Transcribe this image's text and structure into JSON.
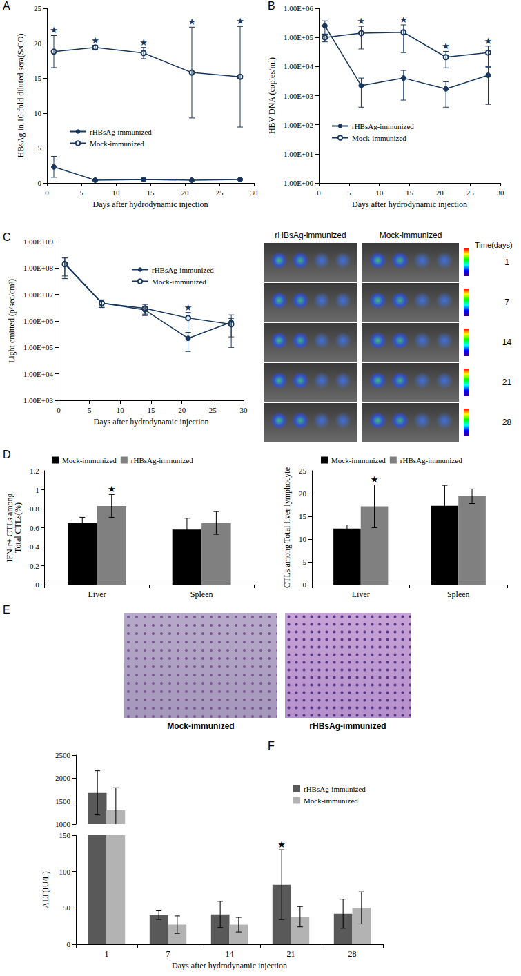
{
  "chart_data": [
    {
      "panel": "A",
      "type": "line",
      "x": [
        1,
        7,
        14,
        21,
        28
      ],
      "xlim": [
        0,
        30
      ],
      "xticks": [
        0,
        5,
        10,
        15,
        20,
        25,
        30
      ],
      "ylim": [
        0,
        25
      ],
      "yticks": [
        0,
        5,
        10,
        15,
        20,
        25
      ],
      "x_label": "Days after hydrodynamic injection",
      "y_label": "HBsAg in 10-fold diluted sera(S/CO)",
      "grid": false,
      "legend": "left",
      "annotation": "★",
      "series": [
        {
          "name": "rHBsAg-immunized",
          "color": "#17375e",
          "marker": "circle",
          "values": [
            2.3,
            0.4,
            0.5,
            0.4,
            0.5
          ],
          "errors": [
            1.5,
            0.1,
            0.1,
            0.1,
            0.1
          ]
        },
        {
          "name": "Mock-immunized",
          "color": "#17375e",
          "marker": "open_circle",
          "values": [
            18.8,
            19.4,
            18.6,
            15.8,
            15.2
          ],
          "errors": [
            2.3,
            0.3,
            0.8,
            6.5,
            7.2
          ],
          "marked": [
            1,
            7,
            14,
            21,
            28
          ]
        }
      ]
    },
    {
      "panel": "B",
      "type": "line",
      "log": "y",
      "x": [
        1,
        7,
        14,
        21,
        28
      ],
      "xlim": [
        0,
        30
      ],
      "xticks": [
        0,
        5,
        10,
        15,
        20,
        25,
        30
      ],
      "ylim": [
        1,
        1000000
      ],
      "yticks": [
        {
          "value": 1,
          "label": "1.00E+00"
        },
        {
          "value": 10,
          "label": "1.00E+01"
        },
        {
          "value": 100,
          "label": "1.00E+02"
        },
        {
          "value": 1000,
          "label": "1.00E+03"
        },
        {
          "value": 10000,
          "label": "1.00E+04"
        },
        {
          "value": 100000,
          "label": "1.00E+05"
        },
        {
          "value": 1000000,
          "label": "1.00E+06"
        }
      ],
      "x_label": "Days after hydrodynamic injection",
      "y_label": "HBV DNA (copies/ml)",
      "grid": false,
      "legend": "left",
      "annotation": "★",
      "series": [
        {
          "name": "rHBsAg-immunized",
          "color": "#17375e",
          "marker": "circle",
          "values": [
            250000,
            2200,
            4000,
            1700,
            5000
          ],
          "errors": [
            120000,
            1800,
            3300,
            1300,
            4500
          ]
        },
        {
          "name": "Mock-immunized",
          "color": "#17375e",
          "marker": "open_circle",
          "values": [
            100000,
            140000,
            150000,
            21000,
            30000
          ],
          "errors": [
            30000,
            100000,
            120000,
            12000,
            20000
          ],
          "marked": [
            7,
            14,
            21,
            28
          ]
        }
      ]
    },
    {
      "panel": "C",
      "type": "line",
      "log": "y",
      "x": [
        1,
        7,
        14,
        21,
        28
      ],
      "xlim": [
        0,
        30
      ],
      "xticks": [
        0,
        5,
        10,
        15,
        20,
        25,
        30
      ],
      "ylim": [
        1000,
        1000000000
      ],
      "yticks": [
        {
          "value": 1000,
          "label": "1.00E+03"
        },
        {
          "value": 10000,
          "label": "1.00E+04"
        },
        {
          "value": 100000,
          "label": "1.00E+05"
        },
        {
          "value": 1000000,
          "label": "1.00E+06"
        },
        {
          "value": 10000000,
          "label": "1.00E+07"
        },
        {
          "value": 100000000,
          "label": "1.00E+08"
        },
        {
          "value": 1000000000,
          "label": "1.00E+09"
        }
      ],
      "x_label": "Days after hydrodynamic injection",
      "y_label": "Light emitted (p/sec/cm²)",
      "grid": false,
      "legend": "right",
      "annotation": "★",
      "series": [
        {
          "name": "rHBsAg-immunized",
          "color": "#17375e",
          "marker": "circle",
          "values": [
            150000000,
            4800000,
            2600000,
            220000,
            900000
          ],
          "errors": [
            100000000,
            1500000,
            1000000,
            150000,
            800000
          ]
        },
        {
          "name": "Mock-immunized",
          "color": "#17375e",
          "marker": "open_circle",
          "values": [
            140000000,
            4700000,
            3000000,
            1300000,
            750000
          ],
          "errors": [
            100000000,
            1500000,
            1200000,
            800000,
            500000
          ],
          "marked": [
            21
          ]
        }
      ]
    },
    {
      "panel": "D",
      "type": "bar",
      "categories": [
        "Liver",
        "Spleen"
      ],
      "ylim": [
        0,
        1.2
      ],
      "yticks": [
        0,
        0.2,
        0.4,
        0.6,
        0.8,
        1,
        1.2
      ],
      "y_label": "IFN-r+ CTLs among\nTotal CTLs(%)",
      "grid": false,
      "legend": "top",
      "annotation": "★",
      "series": [
        {
          "name": "Mock-immunized",
          "color": "#000000",
          "values": [
            0.65,
            0.58
          ],
          "errors": [
            0.06,
            0.12
          ]
        },
        {
          "name": "rHBsAg-immunized",
          "color": "#808080",
          "values": [
            0.83,
            0.65
          ],
          "errors": [
            0.12,
            0.12
          ],
          "marked": [
            "Liver"
          ]
        }
      ]
    },
    {
      "type": "bar",
      "categories": [
        "Liver",
        "Spleen"
      ],
      "ylim": [
        0,
        25
      ],
      "yticks": [
        0,
        5,
        10,
        15,
        20,
        25
      ],
      "y_label": "CTLs among Total liver lymphocyte",
      "grid": false,
      "legend": "top",
      "annotation": "★",
      "series": [
        {
          "name": "Mock-immunized",
          "color": "#000000",
          "values": [
            12.3,
            17.3
          ],
          "errors": [
            0.8,
            4.5
          ]
        },
        {
          "name": "rHBsAg-immunized",
          "color": "#808080",
          "values": [
            17.2,
            19.4
          ],
          "errors": [
            4.7,
            1.6
          ],
          "marked": [
            "Liver"
          ]
        }
      ]
    },
    {
      "panel": "F",
      "type": "bar",
      "categories": [
        "1",
        "7",
        "14",
        "21",
        "28"
      ],
      "ylim": [
        0,
        2500
      ],
      "yticks": [
        0,
        50,
        100,
        150,
        1000,
        1500,
        2000,
        2500
      ],
      "ybreak": [
        150,
        1000
      ],
      "x_label": "Days after hydrodynamic injection",
      "y_label": "ALT(IU/L)",
      "grid": false,
      "legend": "right",
      "annotation": "★",
      "series": [
        {
          "name": "rHBsAg-immunized",
          "color": "#595959",
          "values": [
            1680,
            40,
            41,
            82,
            42
          ],
          "errors": [
            480,
            6,
            18,
            48,
            20
          ],
          "marked": [
            "21"
          ]
        },
        {
          "name": "Mock-immunized",
          "color": "#b3b3b3",
          "values": [
            1300,
            27,
            27,
            38,
            50
          ],
          "errors": [
            490,
            12,
            10,
            14,
            22
          ]
        }
      ]
    }
  ],
  "imaging": {
    "columns": [
      "rHBsAg-immunized",
      "Mock-immunized"
    ],
    "scale_title": "Time(days)",
    "rows": [
      1,
      7,
      14,
      21,
      28
    ]
  },
  "histology": {
    "panel": "E",
    "captions": [
      "Mock-immunized",
      "rHBsAg-immunized"
    ]
  }
}
